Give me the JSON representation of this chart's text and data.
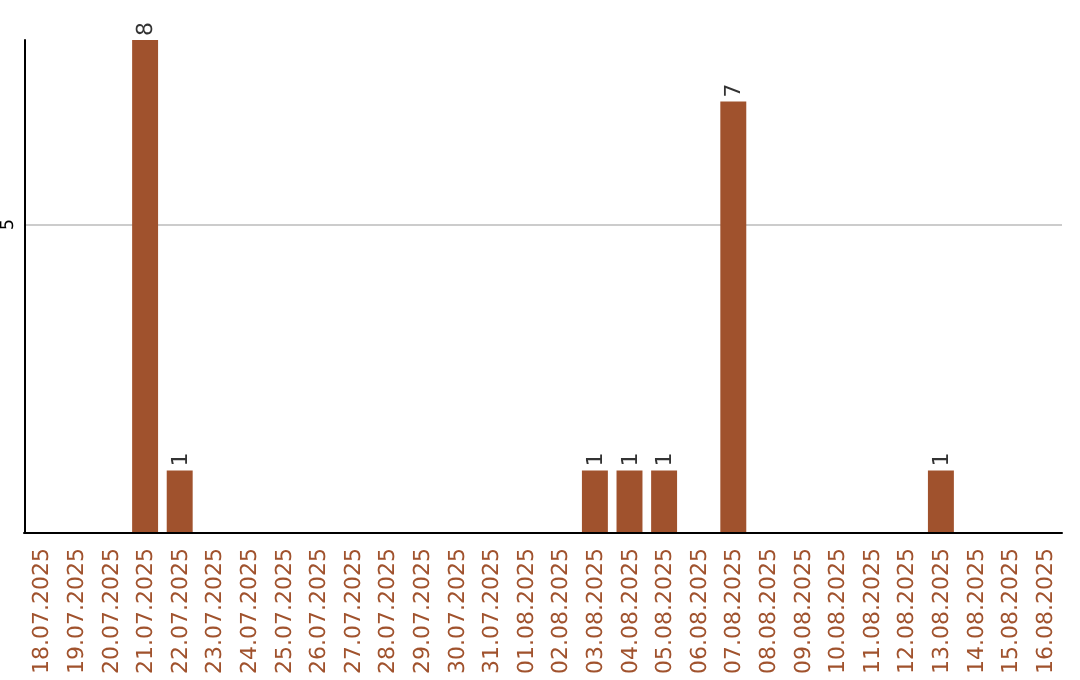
{
  "chart_data": {
    "type": "bar",
    "categories": [
      "18.07.2025",
      "19.07.2025",
      "20.07.2025",
      "21.07.2025",
      "22.07.2025",
      "23.07.2025",
      "24.07.2025",
      "25.07.2025",
      "26.07.2025",
      "27.07.2025",
      "28.07.2025",
      "29.07.2025",
      "30.07.2025",
      "31.07.2025",
      "01.08.2025",
      "02.08.2025",
      "03.08.2025",
      "04.08.2025",
      "05.08.2025",
      "06.08.2025",
      "07.08.2025",
      "08.08.2025",
      "09.08.2025",
      "10.08.2025",
      "11.08.2025",
      "12.08.2025",
      "13.08.2025",
      "14.08.2025",
      "15.08.2025",
      "16.08.2025"
    ],
    "values": [
      0,
      0,
      0,
      8,
      1,
      0,
      0,
      0,
      0,
      0,
      0,
      0,
      0,
      0,
      0,
      0,
      1,
      1,
      1,
      0,
      7,
      0,
      0,
      0,
      0,
      0,
      1,
      0,
      0,
      0
    ],
    "value_labels": [
      null,
      null,
      null,
      "8",
      "1",
      null,
      null,
      null,
      null,
      null,
      null,
      null,
      null,
      null,
      null,
      null,
      "1",
      "1",
      "1",
      null,
      "7",
      null,
      null,
      null,
      null,
      null,
      "1",
      null,
      null,
      null
    ],
    "color": "#a0522d",
    "ylim": [
      0,
      8
    ],
    "yticks": [
      5
    ],
    "grid": "y"
  }
}
